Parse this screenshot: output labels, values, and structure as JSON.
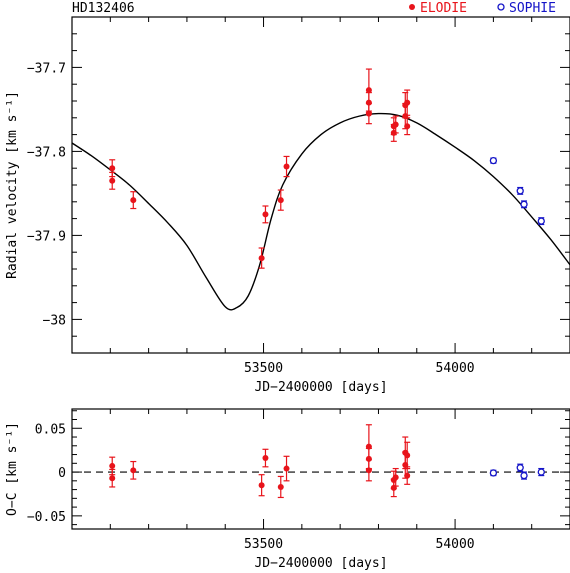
{
  "star_label": "HD132406",
  "legend": {
    "placement": "top-right",
    "elodie": {
      "label": "ELODIE",
      "color": "#e8141b",
      "marker": "filled-circle"
    },
    "sophie": {
      "label": "SOPHIE",
      "color": "#1414c8",
      "marker": "open-circle"
    }
  },
  "chart_data": [
    {
      "type": "scatter",
      "title": "",
      "xlabel": "JD−2400000 [days]",
      "ylabel": "Radial velocity [km s⁻¹]",
      "xlim": [
        53000,
        54300
      ],
      "ylim": [
        -38.04,
        -37.64
      ],
      "y_inverted": false,
      "x_ticks": [
        53500,
        54000
      ],
      "x_tick_labels": [
        "53500",
        "54000"
      ],
      "y_ticks": [
        -38.0,
        -37.9,
        -37.8,
        -37.7
      ],
      "y_tick_labels": [
        "−38",
        "−37.9",
        "−37.8",
        "−37.7"
      ],
      "model_curve": [
        [
          53000,
          -37.79
        ],
        [
          53050,
          -37.805
        ],
        [
          53100,
          -37.822
        ],
        [
          53150,
          -37.84
        ],
        [
          53200,
          -37.862
        ],
        [
          53250,
          -37.885
        ],
        [
          53300,
          -37.912
        ],
        [
          53350,
          -37.95
        ],
        [
          53400,
          -37.985
        ],
        [
          53430,
          -37.986
        ],
        [
          53460,
          -37.972
        ],
        [
          53490,
          -37.935
        ],
        [
          53520,
          -37.88
        ],
        [
          53550,
          -37.84
        ],
        [
          53600,
          -37.803
        ],
        [
          53650,
          -37.78
        ],
        [
          53700,
          -37.766
        ],
        [
          53750,
          -37.758
        ],
        [
          53800,
          -37.755
        ],
        [
          53850,
          -37.757
        ],
        [
          53900,
          -37.766
        ],
        [
          53950,
          -37.78
        ],
        [
          54000,
          -37.795
        ],
        [
          54050,
          -37.811
        ],
        [
          54100,
          -37.83
        ],
        [
          54150,
          -37.852
        ],
        [
          54200,
          -37.878
        ],
        [
          54250,
          -37.905
        ],
        [
          54300,
          -37.935
        ]
      ],
      "series": [
        {
          "name": "ELODIE",
          "color": "#e8141b",
          "marker": "filled",
          "points": [
            {
              "x": 53105,
              "y": -37.82,
              "err": 0.01
            },
            {
              "x": 53105,
              "y": -37.835,
              "err": 0.01
            },
            {
              "x": 53160,
              "y": -37.858,
              "err": 0.01
            },
            {
              "x": 53495,
              "y": -37.927,
              "err": 0.012
            },
            {
              "x": 53505,
              "y": -37.875,
              "err": 0.01
            },
            {
              "x": 53545,
              "y": -37.858,
              "err": 0.012
            },
            {
              "x": 53560,
              "y": -37.818,
              "err": 0.012
            },
            {
              "x": 53775,
              "y": -37.727,
              "err": 0.025
            },
            {
              "x": 53775,
              "y": -37.742,
              "err": 0.012
            },
            {
              "x": 53775,
              "y": -37.755,
              "err": 0.012
            },
            {
              "x": 53840,
              "y": -37.77,
              "err": 0.01
            },
            {
              "x": 53840,
              "y": -37.778,
              "err": 0.01
            },
            {
              "x": 53845,
              "y": -37.768,
              "err": 0.01
            },
            {
              "x": 53870,
              "y": -37.745,
              "err": 0.015
            },
            {
              "x": 53870,
              "y": -37.758,
              "err": 0.015
            },
            {
              "x": 53875,
              "y": -37.742,
              "err": 0.015
            },
            {
              "x": 53875,
              "y": -37.77,
              "err": 0.01
            }
          ]
        },
        {
          "name": "SOPHIE",
          "color": "#1414c8",
          "marker": "open",
          "points": [
            {
              "x": 54100,
              "y": -37.811,
              "err": 0.003
            },
            {
              "x": 54170,
              "y": -37.847,
              "err": 0.004
            },
            {
              "x": 54180,
              "y": -37.863,
              "err": 0.004
            },
            {
              "x": 54225,
              "y": -37.883,
              "err": 0.004
            }
          ]
        }
      ],
      "grid": false
    },
    {
      "type": "scatter",
      "title": "",
      "xlabel": "JD−2400000 [days]",
      "ylabel": "O−C [km s⁻¹]",
      "xlim": [
        53000,
        54300
      ],
      "ylim": [
        -0.065,
        0.072
      ],
      "x_ticks": [
        53500,
        54000
      ],
      "x_tick_labels": [
        "53500",
        "54000"
      ],
      "y_ticks": [
        -0.05,
        0,
        0.05
      ],
      "y_tick_labels": [
        "−0.05",
        "0",
        "0.05"
      ],
      "zero_line": "dashed",
      "series": [
        {
          "name": "ELODIE",
          "color": "#e8141b",
          "marker": "filled",
          "points": [
            {
              "x": 53105,
              "y": 0.007,
              "err": 0.01
            },
            {
              "x": 53105,
              "y": -0.007,
              "err": 0.01
            },
            {
              "x": 53160,
              "y": 0.002,
              "err": 0.01
            },
            {
              "x": 53495,
              "y": -0.015,
              "err": 0.012
            },
            {
              "x": 53505,
              "y": 0.016,
              "err": 0.01
            },
            {
              "x": 53545,
              "y": -0.017,
              "err": 0.012
            },
            {
              "x": 53560,
              "y": 0.004,
              "err": 0.014
            },
            {
              "x": 53775,
              "y": 0.029,
              "err": 0.025
            },
            {
              "x": 53775,
              "y": 0.015,
              "err": 0.012
            },
            {
              "x": 53775,
              "y": 0.002,
              "err": 0.012
            },
            {
              "x": 53840,
              "y": -0.009,
              "err": 0.01
            },
            {
              "x": 53840,
              "y": -0.018,
              "err": 0.01
            },
            {
              "x": 53845,
              "y": -0.006,
              "err": 0.01
            },
            {
              "x": 53870,
              "y": 0.022,
              "err": 0.018
            },
            {
              "x": 53870,
              "y": 0.008,
              "err": 0.015
            },
            {
              "x": 53875,
              "y": 0.019,
              "err": 0.015
            },
            {
              "x": 53875,
              "y": -0.004,
              "err": 0.01
            }
          ]
        },
        {
          "name": "SOPHIE",
          "color": "#1414c8",
          "marker": "open",
          "points": [
            {
              "x": 54100,
              "y": -0.001,
              "err": 0.003
            },
            {
              "x": 54170,
              "y": 0.005,
              "err": 0.004
            },
            {
              "x": 54180,
              "y": -0.004,
              "err": 0.004
            },
            {
              "x": 54225,
              "y": 0.0,
              "err": 0.004
            }
          ]
        }
      ],
      "grid": false
    }
  ]
}
